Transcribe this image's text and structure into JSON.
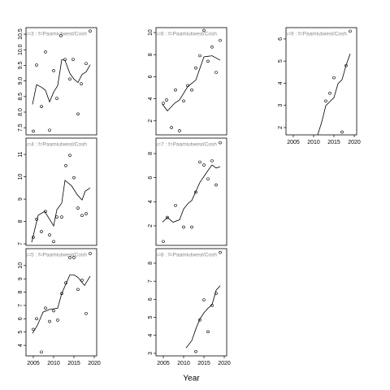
{
  "chart_data": [
    {
      "type": "scatter",
      "title": "s=3 : f=Paamiutwest/Cosh",
      "x": [
        2005,
        2005.8,
        2007,
        2008,
        2009,
        2010,
        2010.8,
        2011.8,
        2012.8,
        2014,
        2014.8,
        2016,
        2016.8,
        2018,
        2019
      ],
      "values": [
        7.39,
        9.51,
        8.18,
        9.93,
        7.42,
        9.33,
        8.44,
        10.45,
        9.69,
        9.06,
        9.69,
        7.94,
        8.91,
        9.56,
        10.6
      ],
      "line": {
        "x": [
          2004.8,
          2005.8,
          2007,
          2008,
          2009,
          2010,
          2011,
          2012,
          2012.8,
          2014,
          2015,
          2016,
          2017,
          2018,
          2019
        ],
        "values": [
          8.25,
          8.88,
          8.8,
          8.7,
          8.33,
          8.64,
          8.85,
          9.68,
          9.66,
          9.24,
          9.06,
          8.95,
          9.21,
          9.29,
          9.52
        ]
      },
      "xlim": [
        2003.2,
        2020.6
      ],
      "ylim": [
        7.27,
        10.71
      ],
      "yticks": [
        7.5,
        {
          "value": 8,
          "label": "8.0"
        },
        8.5,
        {
          "value": 9,
          "label": "9.0"
        },
        9.5,
        {
          "value": 10,
          "label": "10.0"
        },
        10.5
      ]
    },
    {
      "type": "scatter",
      "title": "s=4 : f=Paamiutwest/Cosh",
      "x": [
        2005,
        2005.8,
        2007,
        2008,
        2009,
        2010,
        2010.8,
        2012,
        2013,
        2014,
        2015,
        2016,
        2017,
        2018
      ],
      "values": [
        7.29,
        8.1,
        7.55,
        8.45,
        7.4,
        7.1,
        8.2,
        8.2,
        10.5,
        10.96,
        9.96,
        8.6,
        8.27,
        8.35
      ],
      "line": {
        "x": [
          2004.6,
          2006.2,
          2007.8,
          2010,
          2010.8,
          2012,
          2012.8,
          2014.4,
          2015.8,
          2017,
          2017.8,
          2019
        ],
        "values": [
          7.07,
          8.28,
          8.45,
          7.8,
          8.53,
          8.82,
          9.84,
          9.6,
          9.2,
          8.96,
          9.36,
          9.5
        ]
      },
      "xlim": [
        2003.2,
        2020.6
      ],
      "ylim": [
        6.93,
        11.73
      ],
      "yticks": [
        7,
        8,
        9,
        10,
        11
      ]
    },
    {
      "type": "scatter",
      "title": "s=5 : f=Paamiutwest/Cosh",
      "x": [
        2005,
        2005.8,
        2007,
        2008,
        2009,
        2010,
        2011,
        2012,
        2013,
        2014,
        2015,
        2016,
        2017,
        2018,
        2019
      ],
      "values": [
        5.2,
        6.0,
        3.5,
        6.8,
        5.8,
        6.6,
        5.9,
        7.9,
        8.7,
        10.6,
        10.6,
        8.2,
        8.9,
        6.4,
        10.9
      ],
      "line": {
        "x": [
          2004.8,
          2006,
          2007.4,
          2009,
          2011,
          2012,
          2014,
          2015,
          2016,
          2017.6,
          2019
        ],
        "values": [
          4.9,
          5.5,
          6.5,
          6.7,
          6.8,
          7.9,
          9.3,
          9.3,
          9.1,
          8.5,
          9.2
        ]
      },
      "xlim": [
        2003.2,
        2020.6
      ],
      "ylim": [
        3.21,
        11.27
      ],
      "yticks": [
        4,
        5,
        6,
        7,
        8,
        9,
        10
      ],
      "xticks": [
        2005,
        2010,
        2015,
        2020
      ]
    },
    {
      "type": "scatter",
      "title": "s=6 : f=Paamiutwest/Cosh",
      "x": [
        2005,
        2005.8,
        2007,
        2008,
        2009,
        2010,
        2011,
        2012,
        2013,
        2014,
        2015,
        2016,
        2017,
        2018,
        2019
      ],
      "values": [
        3.6,
        3.9,
        1.4,
        4.8,
        1.1,
        3.8,
        5.2,
        4.8,
        6.8,
        7.9,
        10.2,
        7.4,
        8.7,
        6.4,
        9.3
      ],
      "line": {
        "x": [
          2004.8,
          2006,
          2007.8,
          2009,
          2011,
          2013,
          2015,
          2017,
          2019
        ],
        "values": [
          3.5,
          2.9,
          3.6,
          3.9,
          5.1,
          5.7,
          7.8,
          7.9,
          7.5
        ]
      },
      "xlim": [
        2003.2,
        2020.6
      ],
      "ylim": [
        0.73,
        10.45
      ],
      "yticks": [
        2,
        4,
        6,
        8,
        10
      ]
    },
    {
      "type": "scatter",
      "title": "s=7 : f=Paamiutwest/Cosh",
      "x": [
        2005,
        2006,
        2008,
        2010,
        2012,
        2013,
        2014,
        2015,
        2016,
        2017,
        2018,
        2019
      ],
      "values": [
        0.7,
        2.7,
        3.7,
        1.9,
        1.9,
        4.8,
        7.3,
        7.05,
        5.9,
        7.4,
        5.4,
        8.9
      ],
      "line": {
        "x": [
          2004.8,
          2006,
          2007.4,
          2009,
          2010,
          2011.2,
          2012,
          2014,
          2016,
          2017,
          2018,
          2019
        ],
        "values": [
          2.3,
          2.7,
          2.3,
          2.5,
          3.4,
          3.9,
          4.1,
          5.6,
          6.6,
          7.05,
          6.8,
          6.9
        ]
      },
      "xlim": [
        2003.2,
        2020.6
      ],
      "ylim": [
        0.38,
        9.28
      ],
      "yticks": [
        2,
        4,
        6,
        8
      ]
    },
    {
      "type": "scatter",
      "title": "s=8 : f=Paamiutwest/Cosh",
      "x": [
        2013,
        2014,
        2015,
        2016,
        2017,
        2018,
        2019
      ],
      "values": [
        3.1,
        4.85,
        5.97,
        4.2,
        5.66,
        6.33,
        8.6
      ],
      "line": {
        "x": [
          2010.6,
          2012,
          2013,
          2014,
          2015,
          2016,
          2017,
          2018,
          2019
        ],
        "values": [
          3.3,
          3.7,
          4.35,
          4.9,
          5.25,
          5.5,
          5.7,
          6.5,
          6.75
        ]
      },
      "xlim": [
        2003.2,
        2020.6
      ],
      "ylim": [
        2.86,
        8.81
      ],
      "yticks": [
        3,
        4,
        5,
        6,
        7,
        8
      ],
      "xticks": [
        2005,
        2010,
        2015,
        2020
      ],
      "xlabel": "Year"
    },
    {
      "type": "scatter",
      "title": "s=9 : f=Paamiutwest/Cosh",
      "x": [
        2013,
        2014,
        2015,
        2017,
        2018,
        2019
      ],
      "values": [
        3.2,
        3.55,
        4.25,
        1.8,
        4.8,
        6.35
      ],
      "line": {
        "x": [
          2011,
          2012,
          2013,
          2015,
          2016,
          2017,
          2018,
          2019
        ],
        "values": [
          1.67,
          2.25,
          2.99,
          3.35,
          3.98,
          4.16,
          4.82,
          5.33
        ]
      },
      "xlim": [
        2003.2,
        2020.6
      ],
      "ylim": [
        1.67,
        6.51
      ],
      "yticks": [
        2,
        3,
        4,
        5,
        6
      ],
      "xticks": [
        2005,
        2010,
        2015,
        2020
      ]
    }
  ]
}
